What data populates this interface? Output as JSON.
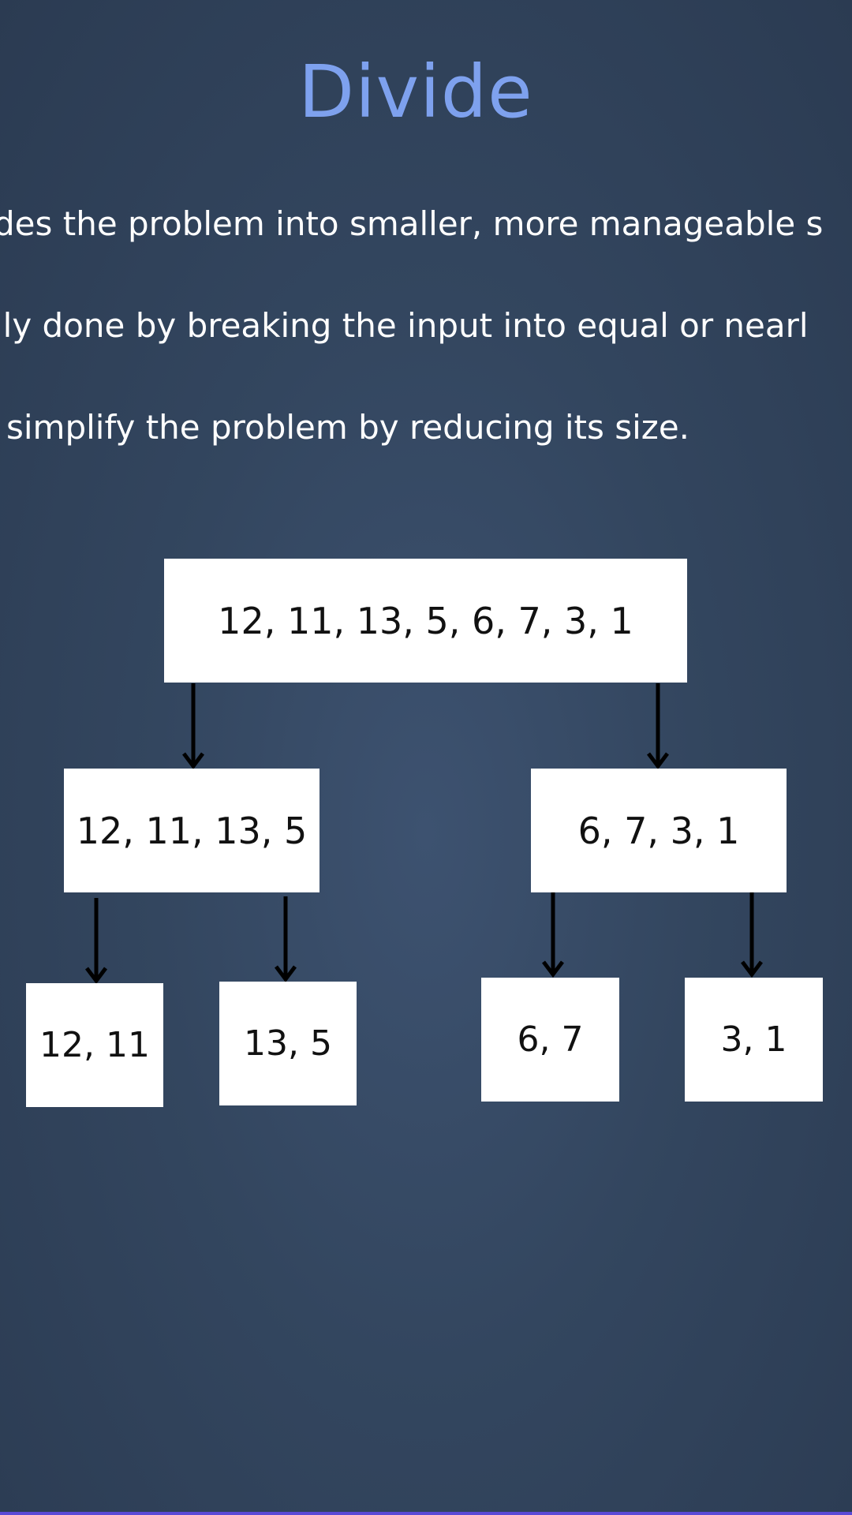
{
  "slide": {
    "title": "Divide",
    "bullets": [
      "des the problem into smaller, more manageable s",
      "lly done by breaking the input into equal or nearl",
      " simplify the problem by reducing its size."
    ]
  },
  "tree": {
    "root": "12, 11, 13, 5, 6, 7, 3, 1",
    "left": "12, 11, 13, 5",
    "right": "6, 7, 3, 1",
    "left_left": "12, 11",
    "left_right": "13, 5",
    "right_left": "6, 7",
    "right_right": "3, 1"
  }
}
